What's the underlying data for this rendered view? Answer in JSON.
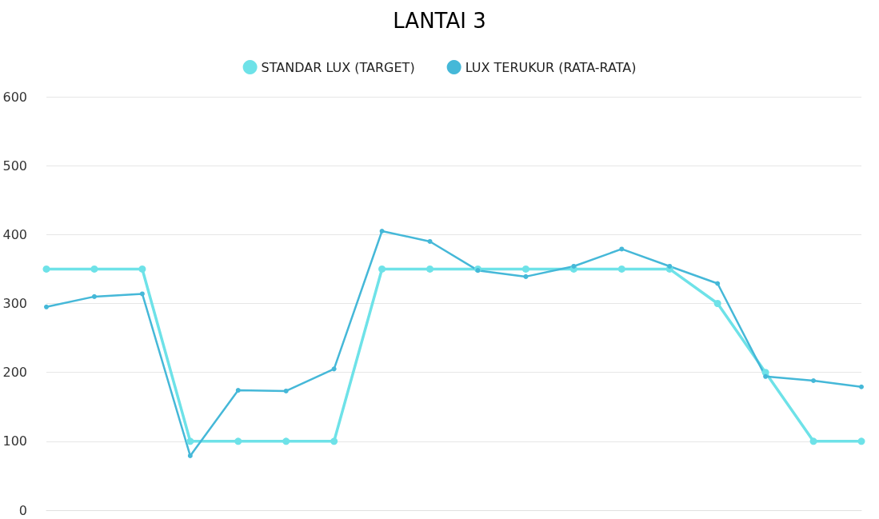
{
  "chart_data": {
    "type": "line",
    "title": "LANTAI 3",
    "categories": [
      null,
      null,
      null,
      null,
      null,
      null,
      null,
      null,
      null,
      null,
      null,
      null,
      null,
      null,
      null,
      null,
      null,
      null
    ],
    "series": [
      {
        "name": "STANDAR LUX (TARGET)",
        "color": "#6ee2e8",
        "values": [
          350,
          350,
          350,
          100,
          100,
          100,
          100,
          350,
          350,
          350,
          350,
          350,
          350,
          350,
          300,
          200,
          100,
          100
        ]
      },
      {
        "name": "LUX TERUKUR (RATA-RATA)",
        "color": "#45b8d8",
        "values": [
          295,
          310,
          314,
          79,
          174,
          173,
          205,
          405,
          390,
          348,
          339,
          354,
          379,
          354,
          329,
          194,
          188,
          179
        ]
      }
    ],
    "ylim": [
      0,
      600
    ],
    "yticks": [
      0,
      100,
      200,
      300,
      400,
      500,
      600
    ],
    "grid": "y",
    "legend": "top",
    "marker": "circle",
    "line_style": "solid"
  }
}
